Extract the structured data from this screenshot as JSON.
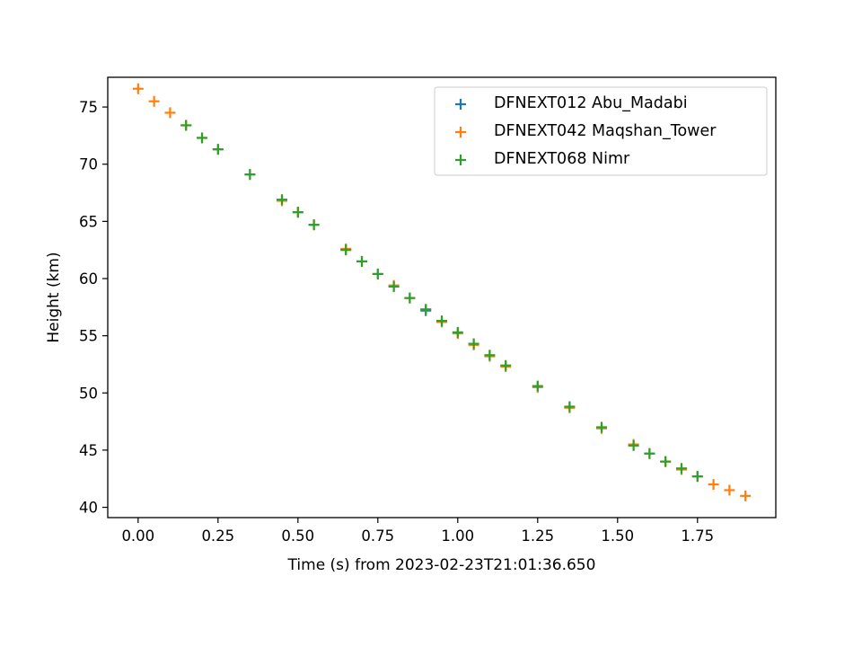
{
  "chart_data": {
    "type": "scatter",
    "xlabel": "Time (s) from 2023-02-23T21:01:36.650",
    "ylabel": "Height (km)",
    "xlim": [
      -0.095,
      1.995
    ],
    "ylim": [
      39.1,
      77.6
    ],
    "xticks": [
      "0.00",
      "0.25",
      "0.50",
      "0.75",
      "1.00",
      "1.25",
      "1.50",
      "1.75"
    ],
    "yticks": [
      "40",
      "45",
      "50",
      "55",
      "60",
      "65",
      "70",
      "75"
    ],
    "grid": false,
    "legend_position": "top-right",
    "marker": "+",
    "series": [
      {
        "name": "DFNEXT012 Abu_Madabi",
        "color": "#1f77b4",
        "x": [
          0.9
        ],
        "y": [
          57.2
        ]
      },
      {
        "name": "DFNEXT042 Maqshan_Tower",
        "color": "#ff7f0e",
        "x": [
          0.0,
          0.05,
          0.1,
          0.15,
          0.2,
          0.25,
          0.35,
          0.45,
          0.5,
          0.55,
          0.65,
          0.7,
          0.75,
          0.8,
          0.85,
          0.9,
          0.95,
          1.0,
          1.05,
          1.1,
          1.15,
          1.25,
          1.35,
          1.45,
          1.55,
          1.6,
          1.65,
          1.7,
          1.75,
          1.8,
          1.85,
          1.9
        ],
        "y": [
          76.6,
          75.5,
          74.5,
          73.4,
          72.3,
          71.3,
          69.1,
          66.8,
          65.8,
          64.7,
          62.6,
          61.5,
          60.4,
          59.4,
          58.3,
          57.3,
          56.2,
          55.2,
          54.2,
          53.2,
          52.3,
          50.5,
          48.7,
          46.9,
          45.5,
          44.7,
          44.0,
          43.3,
          42.7,
          42.0,
          41.5,
          41.0
        ]
      },
      {
        "name": "DFNEXT068 Nimr",
        "color": "#2ca02c",
        "x": [
          0.15,
          0.2,
          0.25,
          0.35,
          0.45,
          0.5,
          0.55,
          0.65,
          0.7,
          0.75,
          0.8,
          0.85,
          0.9,
          0.95,
          1.0,
          1.05,
          1.1,
          1.15,
          1.25,
          1.35,
          1.45,
          1.55,
          1.6,
          1.65,
          1.7,
          1.75
        ],
        "y": [
          73.4,
          72.3,
          71.3,
          69.1,
          66.9,
          65.8,
          64.7,
          62.5,
          61.5,
          60.4,
          59.3,
          58.3,
          57.3,
          56.3,
          55.3,
          54.3,
          53.3,
          52.4,
          50.6,
          48.8,
          47.0,
          45.4,
          44.7,
          44.0,
          43.4,
          42.7
        ]
      }
    ]
  }
}
